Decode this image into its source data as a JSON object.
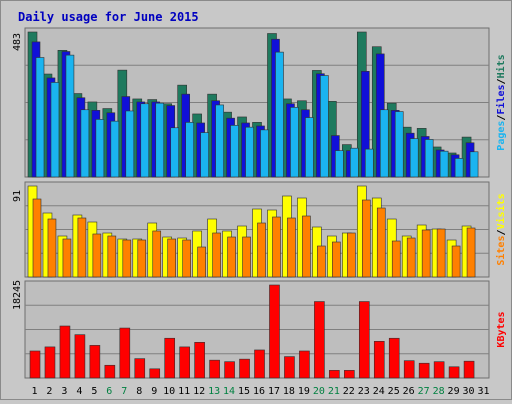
{
  "chart_data": [
    {
      "type": "bar",
      "title": "Daily usage for June 2015",
      "ylabel_parts": [
        "Pages",
        "/",
        "Files",
        "/",
        "Hits"
      ],
      "ymax_label": "483",
      "ymax": 483,
      "categories": [
        "1",
        "2",
        "3",
        "4",
        "5",
        "6",
        "7",
        "8",
        "9",
        "10",
        "11",
        "12",
        "13",
        "14",
        "15",
        "16",
        "17",
        "18",
        "19",
        "20",
        "21",
        "22",
        "23",
        "24",
        "25",
        "26",
        "27",
        "28",
        "29",
        "30",
        "31"
      ],
      "weekend_days": [
        "6",
        "7",
        "13",
        "14",
        "20",
        "21",
        "27",
        "28"
      ],
      "series": [
        {
          "name": "Hits",
          "color": "#1e7a5e",
          "values": [
            483,
            343,
            422,
            278,
            250,
            228,
            356,
            260,
            258,
            244,
            306,
            210,
            276,
            216,
            200,
            182,
            478,
            260,
            254,
            355,
            252,
            108,
            483,
            434,
            246,
            166,
            162,
            100,
            80,
            133,
            0
          ]
        },
        {
          "name": "Files",
          "color": "#1010d8",
          "values": [
            450,
            330,
            418,
            264,
            222,
            214,
            268,
            250,
            250,
            238,
            276,
            180,
            254,
            196,
            180,
            170,
            459,
            244,
            224,
            344,
            138,
            88,
            352,
            410,
            222,
            146,
            135,
            90,
            74,
            114,
            0
          ]
        },
        {
          "name": "Pages",
          "color": "#1ab4f0",
          "values": [
            398,
            315,
            406,
            224,
            192,
            186,
            220,
            244,
            246,
            164,
            182,
            148,
            240,
            172,
            166,
            157,
            416,
            232,
            198,
            338,
            88,
            96,
            93,
            224,
            218,
            128,
            125,
            86,
            62,
            84,
            0
          ]
        }
      ]
    },
    {
      "type": "bar",
      "ylabel_parts": [
        "Sites",
        "/",
        "Visits"
      ],
      "ymax_label": "91",
      "ymax": 91,
      "categories": [
        "1",
        "2",
        "3",
        "4",
        "5",
        "6",
        "7",
        "8",
        "9",
        "10",
        "11",
        "12",
        "13",
        "14",
        "15",
        "16",
        "17",
        "18",
        "19",
        "20",
        "21",
        "22",
        "23",
        "24",
        "25",
        "26",
        "27",
        "28",
        "29",
        "30",
        "31"
      ],
      "series": [
        {
          "name": "Visits",
          "color": "#ffff00",
          "values": [
            91,
            64,
            41,
            62,
            55,
            44,
            38,
            38,
            54,
            40,
            39,
            46,
            58,
            46,
            51,
            68,
            67,
            81,
            79,
            50,
            41,
            44,
            91,
            79,
            58,
            41,
            52,
            48,
            37,
            51,
            0
          ]
        },
        {
          "name": "Sites",
          "color": "#ff8000",
          "values": [
            78,
            58,
            38,
            59,
            43,
            41,
            37,
            37,
            46,
            38,
            37,
            30,
            44,
            40,
            40,
            54,
            60,
            59,
            61,
            31,
            35,
            44,
            77,
            69,
            36,
            39,
            47,
            48,
            31,
            49,
            0
          ]
        }
      ]
    },
    {
      "type": "bar",
      "ylabel_parts": [
        "KBytes"
      ],
      "ymax_label": "18245",
      "ymax": 18245,
      "categories": [
        "1",
        "2",
        "3",
        "4",
        "5",
        "6",
        "7",
        "8",
        "9",
        "10",
        "11",
        "12",
        "13",
        "14",
        "15",
        "16",
        "17",
        "18",
        "19",
        "20",
        "21",
        "22",
        "23",
        "24",
        "25",
        "26",
        "27",
        "28",
        "29",
        "30",
        "31"
      ],
      "series": [
        {
          "name": "KBytes",
          "color": "#ff0000",
          "values": [
            5300,
            6100,
            10200,
            8500,
            6400,
            2500,
            9800,
            3800,
            1800,
            7800,
            6100,
            7000,
            3500,
            3200,
            3700,
            5500,
            18245,
            4200,
            5300,
            15000,
            1500,
            1500,
            15000,
            7200,
            7800,
            3400,
            2900,
            3200,
            2200,
            3300,
            0
          ]
        }
      ]
    }
  ],
  "colors": {
    "background": "#c8c8c8",
    "plot_bg": "#bebebe",
    "title": "#0000c0",
    "grid": "#808080",
    "day_label": "#000000",
    "weekend_label": "#008040"
  }
}
